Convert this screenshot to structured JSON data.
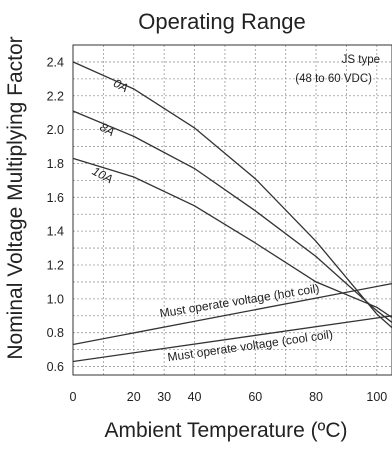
{
  "chart_data": {
    "type": "line",
    "title": "Operating Range",
    "xlabel": "Ambient Temperature (ºC)",
    "ylabel": "Nominal Voltage Multiplying Factor",
    "xlim": [
      0,
      105
    ],
    "ylim": [
      0.55,
      2.5
    ],
    "x_ticks": [
      0,
      20,
      30,
      40,
      60,
      80,
      100
    ],
    "y_ticks": [
      0.6,
      0.8,
      1.0,
      1.2,
      1.4,
      1.6,
      1.8,
      2.0,
      2.2,
      2.4
    ],
    "x_ticklabels": [
      "0",
      "20",
      "30",
      "40",
      "60",
      "80",
      "100"
    ],
    "y_ticklabels": [
      "0.6",
      "0.8",
      "1.0",
      "1.2",
      "1.4",
      "1.6",
      "1.8",
      "2.0",
      "2.2",
      "2.4"
    ],
    "grid": true,
    "note": {
      "line1": "JS type",
      "line2": "(48 to 60 VDC)"
    },
    "series": [
      {
        "name": "0A",
        "x": [
          0,
          20,
          40,
          60,
          80,
          100,
          105
        ],
        "y": [
          2.4,
          2.24,
          2.01,
          1.71,
          1.34,
          0.91,
          0.83
        ]
      },
      {
        "name": "8A",
        "x": [
          0,
          20,
          40,
          60,
          80,
          100,
          105
        ],
        "y": [
          1.83,
          1.72,
          1.55,
          1.33,
          1.1,
          0.95,
          0.89
        ]
      },
      {
        "name": "10A",
        "x": [
          0,
          20,
          40,
          60,
          80,
          100,
          105
        ],
        "y": [
          2.11,
          1.96,
          1.77,
          1.52,
          1.25,
          0.93,
          0.86
        ]
      },
      {
        "name": "Must operate voltage (hot coil)",
        "x": [
          0,
          105
        ],
        "y": [
          0.73,
          1.09
        ]
      },
      {
        "name": "Must operate voltage (cool coil)",
        "x": [
          0,
          105
        ],
        "y": [
          0.63,
          0.9
        ]
      }
    ]
  }
}
